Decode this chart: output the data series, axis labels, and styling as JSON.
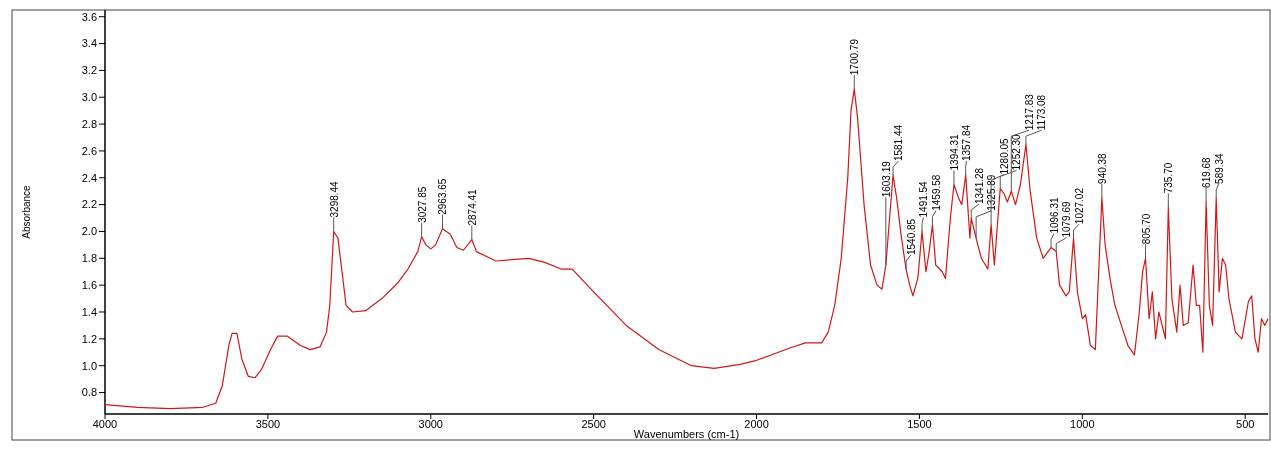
{
  "chart_data": {
    "type": "line",
    "xlabel": "Wavenumbers (cm-1)",
    "ylabel": "Absorbance",
    "xlim": [
      4000,
      430
    ],
    "ylim": [
      0.64,
      3.65
    ],
    "xticks": [
      4000,
      3500,
      3000,
      2500,
      2000,
      1500,
      1000,
      500
    ],
    "yticks": [
      {
        "value": 0.8,
        "label": "0.8"
      },
      {
        "value": 1.0,
        "label": "1.0"
      },
      {
        "value": 1.2,
        "label": "1.2"
      },
      {
        "value": 1.4,
        "label": "1.4"
      },
      {
        "value": 1.6,
        "label": "1.6"
      },
      {
        "value": 1.8,
        "label": "1.8"
      },
      {
        "value": 2.0,
        "label": "2.0"
      },
      {
        "value": 2.2,
        "label": "2.2"
      },
      {
        "value": 2.4,
        "label": "2.4"
      },
      {
        "value": 2.6,
        "label": "2.6"
      },
      {
        "value": 2.8,
        "label": "2.8"
      },
      {
        "value": 3.0,
        "label": "3.0"
      },
      {
        "value": 3.2,
        "label": "3.2"
      },
      {
        "value": 3.4,
        "label": "3.4"
      },
      {
        "value": 3.6,
        "label": "3.6"
      }
    ],
    "grid": false,
    "marker": "none",
    "line_style": "solid",
    "series": [
      {
        "color": "#d01818",
        "x": [
          4000,
          3900,
          3800,
          3700,
          3660,
          3640,
          3620,
          3610,
          3595,
          3580,
          3560,
          3540,
          3520,
          3490,
          3470,
          3440,
          3400,
          3370,
          3340,
          3320,
          3310,
          3298,
          3285,
          3270,
          3260,
          3240,
          3200,
          3150,
          3100,
          3070,
          3040,
          3028,
          3015,
          3000,
          2985,
          2964,
          2940,
          2920,
          2900,
          2874,
          2860,
          2800,
          2750,
          2700,
          2650,
          2600,
          2566,
          2500,
          2400,
          2300,
          2200,
          2130,
          2050,
          2000,
          1900,
          1850,
          1800,
          1780,
          1760,
          1740,
          1720,
          1710,
          1700,
          1690,
          1670,
          1650,
          1630,
          1615,
          1603,
          1590,
          1581,
          1570,
          1555,
          1541,
          1530,
          1520,
          1505,
          1492,
          1480,
          1470,
          1460,
          1450,
          1430,
          1420,
          1405,
          1394,
          1380,
          1370,
          1358,
          1345,
          1341,
          1326,
          1310,
          1290,
          1280,
          1270,
          1252,
          1240,
          1230,
          1218,
          1205,
          1190,
          1173,
          1160,
          1140,
          1120,
          1096,
          1080,
          1070,
          1050,
          1040,
          1027,
          1015,
          1000,
          990,
          975,
          960,
          940,
          930,
          915,
          900,
          880,
          860,
          840,
          825,
          815,
          806,
          795,
          785,
          775,
          765,
          745,
          736,
          725,
          710,
          700,
          690,
          675,
          660,
          650,
          640,
          630,
          620,
          610,
          600,
          589,
          580,
          570,
          560,
          550,
          530,
          510,
          490,
          480,
          470,
          460,
          450,
          440,
          430
        ],
        "values": [
          0.71,
          0.69,
          0.68,
          0.69,
          0.72,
          0.85,
          1.15,
          1.24,
          1.24,
          1.05,
          0.92,
          0.91,
          0.97,
          1.13,
          1.22,
          1.22,
          1.15,
          1.12,
          1.14,
          1.25,
          1.45,
          2.0,
          1.95,
          1.65,
          1.45,
          1.4,
          1.41,
          1.5,
          1.62,
          1.72,
          1.85,
          1.96,
          1.9,
          1.87,
          1.9,
          2.02,
          1.98,
          1.88,
          1.86,
          1.94,
          1.85,
          1.78,
          1.79,
          1.8,
          1.77,
          1.72,
          1.72,
          1.55,
          1.3,
          1.12,
          1.0,
          0.98,
          1.01,
          1.04,
          1.13,
          1.17,
          1.17,
          1.25,
          1.45,
          1.8,
          2.4,
          2.9,
          3.06,
          2.85,
          2.2,
          1.75,
          1.6,
          1.57,
          1.75,
          2.15,
          2.42,
          2.25,
          1.95,
          1.72,
          1.6,
          1.52,
          1.65,
          2.0,
          1.7,
          1.85,
          2.05,
          1.75,
          1.7,
          1.65,
          2.1,
          2.35,
          2.25,
          2.2,
          2.42,
          1.95,
          2.1,
          1.95,
          1.8,
          1.72,
          2.05,
          1.75,
          2.32,
          2.28,
          2.22,
          2.3,
          2.2,
          2.35,
          2.65,
          2.3,
          1.95,
          1.8,
          1.88,
          1.85,
          1.6,
          1.52,
          1.55,
          1.95,
          1.55,
          1.35,
          1.38,
          1.15,
          1.12,
          2.25,
          1.9,
          1.65,
          1.45,
          1.3,
          1.15,
          1.08,
          1.4,
          1.7,
          1.8,
          1.35,
          1.55,
          1.2,
          1.4,
          1.2,
          2.18,
          1.5,
          1.25,
          1.6,
          1.3,
          1.32,
          1.75,
          1.45,
          1.45,
          1.1,
          2.22,
          1.45,
          1.3,
          2.25,
          1.55,
          1.8,
          1.75,
          1.5,
          1.25,
          1.2,
          1.48,
          1.52,
          1.2,
          1.1,
          1.35,
          1.3,
          1.35
        ]
      }
    ],
    "annotations": [
      {
        "text": "3298.44",
        "x": 3298,
        "y": 2.0
      },
      {
        "text": "3027.85",
        "x": 3028,
        "y": 1.96
      },
      {
        "text": "2963.65",
        "x": 2964,
        "y": 2.02
      },
      {
        "text": "2874.41",
        "x": 2874,
        "y": 1.94
      },
      {
        "text": "1700.79",
        "x": 1700,
        "y": 3.06
      },
      {
        "text": "1603.19",
        "x": 1603,
        "y": 1.75
      },
      {
        "text": "1581.44",
        "x": 1581,
        "y": 2.42
      },
      {
        "text": "1540.85",
        "x": 1541,
        "y": 1.72
      },
      {
        "text": "1491.54",
        "x": 1492,
        "y": 2.0
      },
      {
        "text": "1459.58",
        "x": 1460,
        "y": 2.05
      },
      {
        "text": "1394.31",
        "x": 1394,
        "y": 2.35
      },
      {
        "text": "1357.84",
        "x": 1358,
        "y": 2.42
      },
      {
        "text": "1341.28",
        "x": 1341,
        "y": 2.1
      },
      {
        "text": "1325.89",
        "x": 1326,
        "y": 1.95
      },
      {
        "text": "1280.05",
        "x": 1280,
        "y": 2.05
      },
      {
        "text": "1252.30",
        "x": 1252,
        "y": 2.32
      },
      {
        "text": "1217.83",
        "x": 1218,
        "y": 2.3
      },
      {
        "text": "1173.08",
        "x": 1173,
        "y": 2.65
      },
      {
        "text": "1096.31",
        "x": 1096,
        "y": 1.88
      },
      {
        "text": "1079.69",
        "x": 1080,
        "y": 1.85
      },
      {
        "text": "1027.02",
        "x": 1027,
        "y": 1.95
      },
      {
        "text": "940.38",
        "x": 940,
        "y": 2.25
      },
      {
        "text": "805.70",
        "x": 806,
        "y": 1.8
      },
      {
        "text": "735.70",
        "x": 736,
        "y": 2.18
      },
      {
        "text": "619.68",
        "x": 620,
        "y": 2.22
      },
      {
        "text": "589.34",
        "x": 589,
        "y": 2.25
      }
    ]
  }
}
